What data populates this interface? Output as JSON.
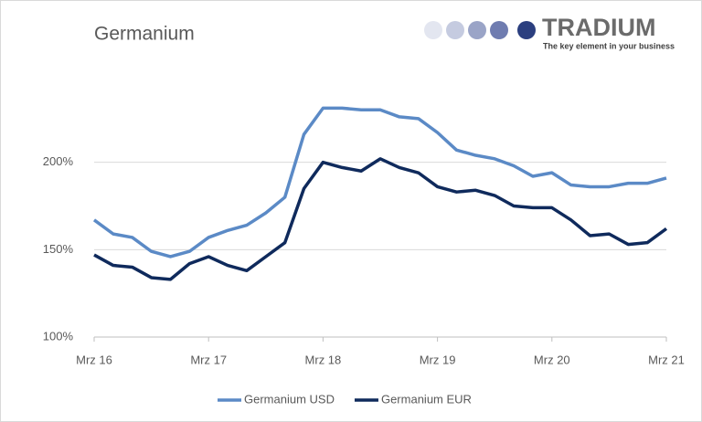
{
  "chart_data": {
    "type": "line",
    "title": "Germanium",
    "categories": [
      "Mrz 16",
      null,
      null,
      null,
      null,
      null,
      "Mrz 17",
      null,
      null,
      null,
      null,
      null,
      "Mrz 18",
      null,
      null,
      null,
      null,
      null,
      "Mrz 19",
      null,
      null,
      null,
      null,
      null,
      "Mrz 20",
      null,
      null,
      null,
      null,
      null,
      "Mrz 21"
    ],
    "series": [
      {
        "name": "Germanium USD",
        "color": "#5b8ac6",
        "values": [
          167,
          159,
          157,
          149,
          146,
          149,
          157,
          161,
          164,
          171,
          180,
          216,
          231,
          231,
          230,
          230,
          226,
          225,
          217,
          207,
          204,
          202,
          198,
          192,
          194,
          187,
          186,
          186,
          188,
          188,
          191
        ]
      },
      {
        "name": "Germanium EUR",
        "color": "#0f2a5c",
        "values": [
          147,
          141,
          140,
          134,
          133,
          142,
          146,
          141,
          138,
          146,
          154,
          185,
          200,
          197,
          195,
          202,
          197,
          194,
          186,
          183,
          184,
          181,
          175,
          174,
          174,
          167,
          158,
          159,
          153,
          154,
          162
        ]
      }
    ],
    "ylim": [
      100,
      250
    ],
    "yticks": [
      {
        "value": 100,
        "label": "100%"
      },
      {
        "value": 150,
        "label": "150%"
      },
      {
        "value": 200,
        "label": "200%"
      }
    ],
    "grid": true,
    "legend": "bottom"
  },
  "logo": {
    "name": "TRADIUM",
    "tagline": "The key element in your business"
  }
}
